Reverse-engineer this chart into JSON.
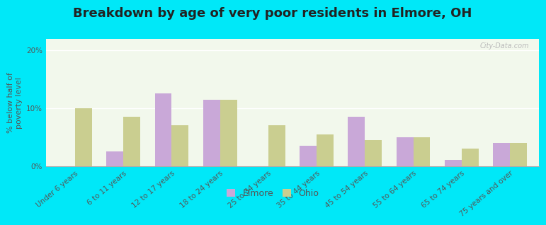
{
  "title": "Breakdown by age of very poor residents in Elmore, OH",
  "ylabel": "% below half of\npoverty level",
  "categories": [
    "Under 6 years",
    "6 to 11 years",
    "12 to 17 years",
    "18 to 24 years",
    "25 to 34 years",
    "35 to 44 years",
    "45 to 54 years",
    "55 to 64 years",
    "65 to 74 years",
    "75 years and over"
  ],
  "elmore_values": [
    0,
    2.5,
    12.5,
    11.5,
    0,
    3.5,
    8.5,
    5.0,
    1.0,
    4.0
  ],
  "ohio_values": [
    10.0,
    8.5,
    7.0,
    11.5,
    7.0,
    5.5,
    4.5,
    5.0,
    3.0,
    4.0
  ],
  "elmore_color": "#c9a8d8",
  "ohio_color": "#cace90",
  "outer_bg": "#00e8f8",
  "plot_bg": "#f2f8ec",
  "ylim": [
    0,
    22
  ],
  "yticks": [
    0,
    10,
    20
  ],
  "yticklabels": [
    "0%",
    "10%",
    "20%"
  ],
  "bar_width": 0.35,
  "title_fontsize": 13,
  "axis_label_fontsize": 8,
  "legend_fontsize": 9,
  "tick_fontsize": 7.5,
  "watermark": "City-Data.com",
  "legend_labels": [
    "Elmore",
    "Ohio"
  ]
}
